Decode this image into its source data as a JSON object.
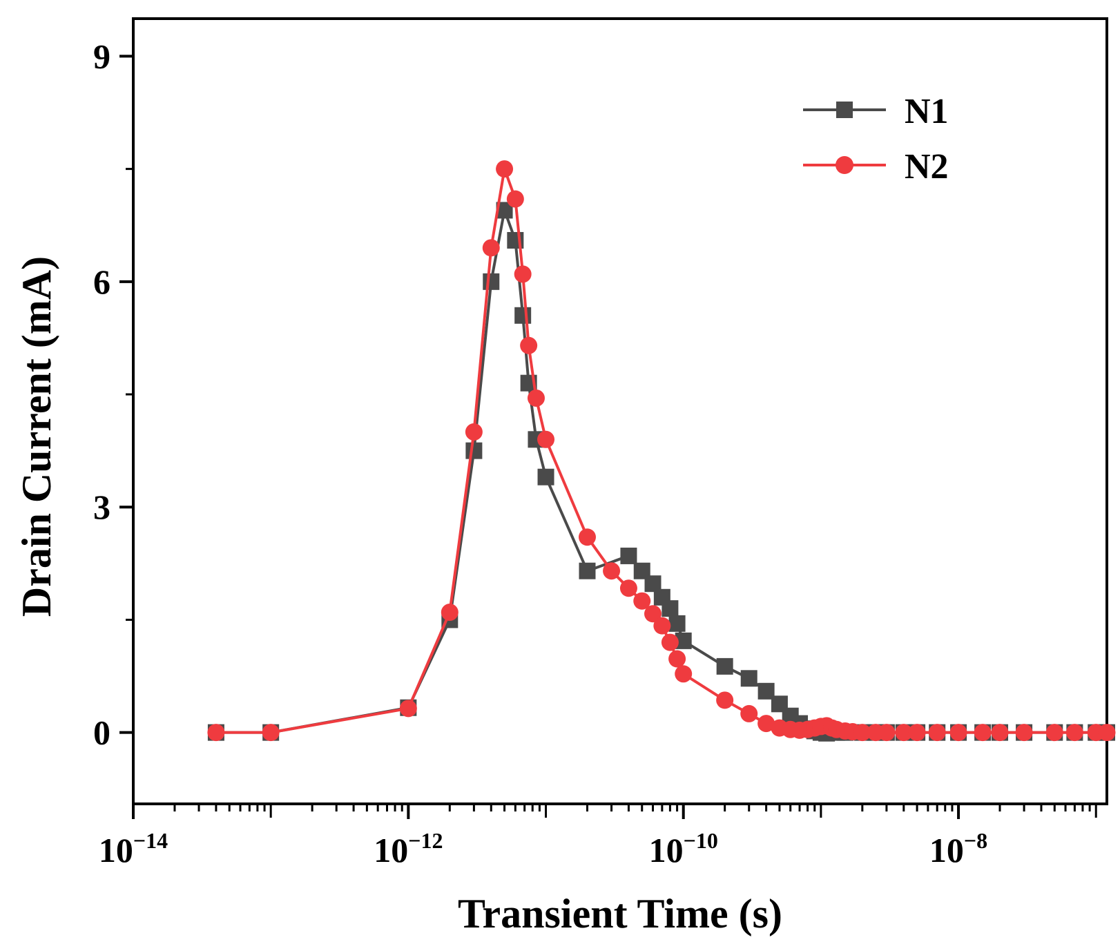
{
  "chart_data": {
    "type": "line",
    "xscale": "log",
    "xlabel": "Transient Time (s)",
    "ylabel": "Drain Current (mA)",
    "xlim": [
      1e-14,
      1.2e-07
    ],
    "ylim": [
      -0.95,
      9.5
    ],
    "x_ticks": [
      {
        "value": 1e-14,
        "base": "10",
        "exp": "−14"
      },
      {
        "value": 1e-12,
        "base": "10",
        "exp": "−12"
      },
      {
        "value": 1e-10,
        "base": "10",
        "exp": "−10"
      },
      {
        "value": 1e-08,
        "base": "10",
        "exp": "−8"
      }
    ],
    "y_ticks": [
      {
        "value": 0,
        "label": "0"
      },
      {
        "value": 3,
        "label": "3"
      },
      {
        "value": 6,
        "label": "6"
      },
      {
        "value": 9,
        "label": "9"
      }
    ],
    "legend_position": "top-right",
    "series": [
      {
        "name": "N1",
        "color": "#4a4a4a",
        "marker": "square",
        "x": [
          4e-14,
          1e-13,
          1e-12,
          2e-12,
          3e-12,
          4e-12,
          5e-12,
          6e-12,
          6.8e-12,
          7.5e-12,
          8.5e-12,
          1e-11,
          2e-11,
          4e-11,
          5e-11,
          6e-11,
          7e-11,
          8e-11,
          9e-11,
          1e-10,
          2e-10,
          3e-10,
          4e-10,
          5e-10,
          6e-10,
          7e-10,
          8e-10,
          9e-10,
          1e-09,
          1.1e-09,
          1.3e-09,
          1.5e-09,
          2e-09,
          2.5e-09,
          3e-09,
          4e-09,
          5e-09,
          7e-09,
          1e-08,
          1.5e-08,
          2e-08,
          3e-08,
          5e-08,
          7e-08,
          1e-07,
          1.2e-07
        ],
        "y": [
          0,
          0,
          0.33,
          1.5,
          3.75,
          6.0,
          6.95,
          6.55,
          5.55,
          4.65,
          3.9,
          3.4,
          2.15,
          2.35,
          2.15,
          1.98,
          1.8,
          1.65,
          1.45,
          1.22,
          0.88,
          0.72,
          0.55,
          0.38,
          0.22,
          0.12,
          0.05,
          0.02,
          0.0,
          -0.01,
          0,
          0,
          0,
          0,
          0,
          0,
          0,
          0,
          0,
          0,
          0,
          0,
          0,
          0,
          0,
          0
        ]
      },
      {
        "name": "N2",
        "color": "#ef3b3f",
        "marker": "circle",
        "x": [
          4e-14,
          1e-13,
          1e-12,
          2e-12,
          3e-12,
          4e-12,
          5e-12,
          6e-12,
          6.8e-12,
          7.5e-12,
          8.5e-12,
          1e-11,
          2e-11,
          3e-11,
          4e-11,
          5e-11,
          6e-11,
          7e-11,
          8e-11,
          9e-11,
          1e-10,
          2e-10,
          3e-10,
          4e-10,
          5e-10,
          6e-10,
          7e-10,
          8e-10,
          9e-10,
          1e-09,
          1.1e-09,
          1.2e-09,
          1.3e-09,
          1.5e-09,
          1.7e-09,
          2e-09,
          2.5e-09,
          3e-09,
          4e-09,
          5e-09,
          7e-09,
          1e-08,
          1.5e-08,
          2e-08,
          3e-08,
          5e-08,
          7e-08,
          1e-07,
          1.2e-07
        ],
        "y": [
          0,
          0,
          0.32,
          1.6,
          4.0,
          6.45,
          7.5,
          7.1,
          6.1,
          5.15,
          4.45,
          3.9,
          2.6,
          2.15,
          1.92,
          1.75,
          1.58,
          1.42,
          1.2,
          0.98,
          0.78,
          0.43,
          0.25,
          0.12,
          0.06,
          0.04,
          0.03,
          0.04,
          0.06,
          0.08,
          0.09,
          0.06,
          0.04,
          0.02,
          0.01,
          0,
          0,
          0,
          0,
          0,
          0,
          0,
          0,
          0,
          0,
          0,
          0,
          0,
          0
        ]
      }
    ]
  }
}
